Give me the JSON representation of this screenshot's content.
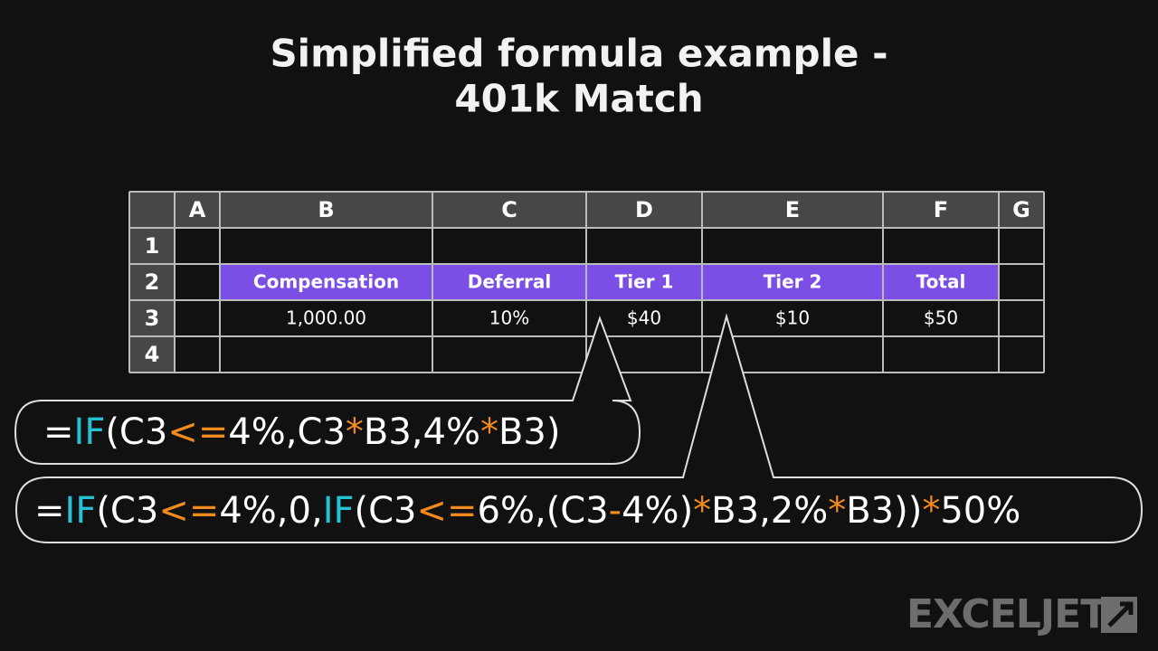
{
  "title": [
    "Simplified formula example -",
    "401k Match"
  ],
  "sheet": {
    "columns": [
      "A",
      "B",
      "C",
      "D",
      "E",
      "F",
      "G"
    ],
    "rows": [
      {
        "label": "1"
      },
      {
        "label": "2",
        "fill": "#7b4fe6",
        "cells": {
          "B": "Compensation",
          "C": "Deferral",
          "D": "Tier 1",
          "E": "Tier 2",
          "F": "Total"
        }
      },
      {
        "label": "3",
        "cells": {
          "B": "1,000.00",
          "C": "10%",
          "D": "$40",
          "E": "$10",
          "F": "$50"
        }
      },
      {
        "label": "4"
      }
    ]
  },
  "formulas": [
    [
      {
        "text": "=",
        "color": "#ffffff"
      },
      {
        "text": "IF",
        "color": "#25c2d3"
      },
      {
        "text": "(C3",
        "color": "#ffffff"
      },
      {
        "text": "<=",
        "color": "#f28a1e"
      },
      {
        "text": "4%,C3",
        "color": "#ffffff"
      },
      {
        "text": "*",
        "color": "#f28a1e"
      },
      {
        "text": "B3,4%",
        "color": "#ffffff"
      },
      {
        "text": "*",
        "color": "#f28a1e"
      },
      {
        "text": "B3)",
        "color": "#ffffff"
      }
    ],
    [
      {
        "text": "=",
        "color": "#ffffff"
      },
      {
        "text": "IF",
        "color": "#25c2d3"
      },
      {
        "text": "(C3",
        "color": "#ffffff"
      },
      {
        "text": "<=",
        "color": "#f28a1e"
      },
      {
        "text": "4%,0,",
        "color": "#ffffff"
      },
      {
        "text": "IF",
        "color": "#25c2d3"
      },
      {
        "text": "(C3",
        "color": "#ffffff"
      },
      {
        "text": "<=",
        "color": "#f28a1e"
      },
      {
        "text": "6%,(C3",
        "color": "#ffffff"
      },
      {
        "text": "-",
        "color": "#f28a1e"
      },
      {
        "text": "4%)",
        "color": "#ffffff"
      },
      {
        "text": "*",
        "color": "#f28a1e"
      },
      {
        "text": "B3,2%",
        "color": "#ffffff"
      },
      {
        "text": "*",
        "color": "#f28a1e"
      },
      {
        "text": "B3))",
        "color": "#ffffff"
      },
      {
        "text": "*",
        "color": "#f28a1e"
      },
      {
        "text": "50%",
        "color": "#ffffff"
      }
    ]
  ],
  "logo": "EXCELJET"
}
